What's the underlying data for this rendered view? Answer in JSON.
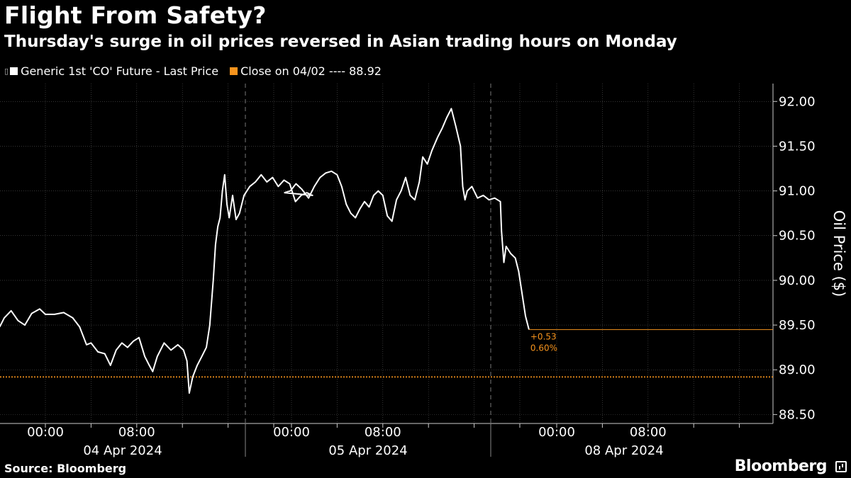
{
  "header": {
    "title": "Flight From Safety?",
    "subtitle": "Thursday's surge in oil prices reversed in Asian trading hours on Monday"
  },
  "legend": {
    "series_label": "Generic 1st 'CO' Future - Last Price",
    "reference_label": "Close on 04/02 ---- 88.92"
  },
  "footer": {
    "source": "Source: Bloomberg",
    "brand": "Bloomberg"
  },
  "colors": {
    "background": "#000000",
    "series": "#ffffff",
    "reference": "#f7941d",
    "grid": "#555555"
  },
  "chart_data": {
    "type": "line",
    "title": "Flight From Safety?",
    "subtitle": "Thursday's surge in oil prices reversed in Asian trading hours on Monday",
    "ylabel": "Oil Price ($)",
    "ylim": [
      88.4,
      92.2
    ],
    "y_ticks": [
      "92.00",
      "91.50",
      "91.00",
      "90.50",
      "90.00",
      "89.50",
      "89.00",
      "88.50"
    ],
    "x_ticks": [
      {
        "day": 0,
        "hour": 0,
        "label": "00:00"
      },
      {
        "day": 0,
        "hour": 8,
        "label": "08:00"
      },
      {
        "day": 1,
        "hour": 0,
        "label": "00:00"
      },
      {
        "day": 1,
        "hour": 8,
        "label": "08:00"
      },
      {
        "day": 2,
        "hour": 0,
        "label": "00:00"
      },
      {
        "day": 2,
        "hour": 8,
        "label": "08:00"
      }
    ],
    "date_labels": [
      "04 Apr 2024",
      "05 Apr 2024",
      "08 Apr 2024"
    ],
    "grid": true,
    "legend_position": "top-left",
    "series": [
      {
        "name": "Generic 1st 'CO' Future - Last Price",
        "points": [
          [
            0,
            -4.0,
            89.48
          ],
          [
            0,
            -3.6,
            89.58
          ],
          [
            0,
            -3.0,
            89.66
          ],
          [
            0,
            -2.4,
            89.55
          ],
          [
            0,
            -1.8,
            89.5
          ],
          [
            0,
            -1.2,
            89.63
          ],
          [
            0,
            -0.5,
            89.68
          ],
          [
            0,
            0.0,
            89.62
          ],
          [
            0,
            0.8,
            89.62
          ],
          [
            0,
            1.6,
            89.64
          ],
          [
            0,
            2.4,
            89.58
          ],
          [
            0,
            3.0,
            89.48
          ],
          [
            0,
            3.6,
            89.28
          ],
          [
            0,
            4.0,
            89.3
          ],
          [
            0,
            4.6,
            89.2
          ],
          [
            0,
            5.2,
            89.18
          ],
          [
            0,
            5.7,
            89.05
          ],
          [
            0,
            6.2,
            89.22
          ],
          [
            0,
            6.7,
            89.3
          ],
          [
            0,
            7.2,
            89.25
          ],
          [
            0,
            7.7,
            89.32
          ],
          [
            0,
            8.2,
            89.36
          ],
          [
            0,
            8.7,
            89.15
          ],
          [
            0,
            9.1,
            89.05
          ],
          [
            0,
            9.4,
            88.98
          ],
          [
            0,
            9.8,
            89.15
          ],
          [
            0,
            10.4,
            89.3
          ],
          [
            0,
            11.0,
            89.22
          ],
          [
            0,
            11.6,
            89.28
          ],
          [
            0,
            12.1,
            89.22
          ],
          [
            0,
            12.4,
            89.1
          ],
          [
            0,
            12.6,
            88.74
          ],
          [
            0,
            12.9,
            88.92
          ],
          [
            0,
            13.3,
            89.05
          ],
          [
            0,
            13.7,
            89.15
          ],
          [
            0,
            14.1,
            89.25
          ],
          [
            0,
            14.4,
            89.5
          ],
          [
            0,
            14.7,
            90.0
          ],
          [
            0,
            14.9,
            90.4
          ],
          [
            0,
            15.1,
            90.6
          ],
          [
            0,
            15.3,
            90.7
          ],
          [
            0,
            15.5,
            91.0
          ],
          [
            0,
            15.7,
            91.18
          ],
          [
            0,
            15.9,
            90.85
          ],
          [
            0,
            16.1,
            90.7
          ],
          [
            0,
            16.4,
            90.95
          ],
          [
            0,
            16.7,
            90.68
          ],
          [
            0,
            17.0,
            90.75
          ],
          [
            0,
            17.4,
            90.95
          ],
          [
            0,
            17.9,
            91.05
          ],
          [
            0,
            18.4,
            91.1
          ],
          [
            0,
            18.9,
            91.18
          ],
          [
            0,
            19.4,
            91.1
          ],
          [
            0,
            19.9,
            91.15
          ],
          [
            0,
            20.4,
            91.05
          ],
          [
            0,
            20.9,
            91.12
          ],
          [
            0,
            21.4,
            91.08
          ],
          [
            0,
            21.9,
            90.88
          ],
          [
            0,
            22.4,
            90.95
          ],
          [
            0,
            22.9,
            90.98
          ],
          [
            0,
            23.4,
            90.95
          ],
          [
            1,
            -0.6,
            90.98
          ],
          [
            1,
            -0.1,
            91.0
          ],
          [
            1,
            0.4,
            91.08
          ],
          [
            1,
            0.9,
            91.02
          ],
          [
            1,
            1.5,
            90.92
          ],
          [
            1,
            2.0,
            91.05
          ],
          [
            1,
            2.5,
            91.15
          ],
          [
            1,
            3.0,
            91.2
          ],
          [
            1,
            3.5,
            91.22
          ],
          [
            1,
            4.0,
            91.18
          ],
          [
            1,
            4.4,
            91.05
          ],
          [
            1,
            4.8,
            90.85
          ],
          [
            1,
            5.2,
            90.75
          ],
          [
            1,
            5.6,
            90.7
          ],
          [
            1,
            6.0,
            90.8
          ],
          [
            1,
            6.4,
            90.88
          ],
          [
            1,
            6.8,
            90.82
          ],
          [
            1,
            7.2,
            90.95
          ],
          [
            1,
            7.6,
            91.0
          ],
          [
            1,
            8.0,
            90.95
          ],
          [
            1,
            8.4,
            90.72
          ],
          [
            1,
            8.8,
            90.66
          ],
          [
            1,
            9.2,
            90.9
          ],
          [
            1,
            9.6,
            91.0
          ],
          [
            1,
            10.0,
            91.15
          ],
          [
            1,
            10.4,
            90.95
          ],
          [
            1,
            10.8,
            90.9
          ],
          [
            1,
            11.2,
            91.1
          ],
          [
            1,
            11.5,
            91.38
          ],
          [
            1,
            11.9,
            91.3
          ],
          [
            1,
            12.3,
            91.45
          ],
          [
            1,
            12.8,
            91.6
          ],
          [
            1,
            13.2,
            91.7
          ],
          [
            1,
            13.6,
            91.82
          ],
          [
            1,
            14.0,
            91.92
          ],
          [
            1,
            14.4,
            91.72
          ],
          [
            1,
            14.8,
            91.5
          ],
          [
            1,
            15.0,
            91.05
          ],
          [
            1,
            15.2,
            90.9
          ],
          [
            1,
            15.4,
            91.0
          ],
          [
            1,
            15.8,
            91.05
          ],
          [
            1,
            16.3,
            90.92
          ],
          [
            1,
            16.8,
            90.95
          ],
          [
            1,
            17.3,
            90.9
          ],
          [
            1,
            17.8,
            90.92
          ],
          [
            1,
            18.3,
            90.88
          ],
          [
            1,
            18.4,
            90.55
          ],
          [
            1,
            18.6,
            90.2
          ],
          [
            1,
            18.8,
            90.38
          ],
          [
            1,
            19.2,
            90.3
          ],
          [
            1,
            19.6,
            90.25
          ],
          [
            1,
            19.9,
            90.1
          ],
          [
            1,
            20.2,
            89.85
          ],
          [
            1,
            20.5,
            89.6
          ],
          [
            1,
            20.8,
            89.45
          ]
        ]
      }
    ],
    "reference_line": {
      "name": "Close on 04/02",
      "value": 88.92
    },
    "last_value_line": 89.45,
    "last_change": {
      "abs": "+0.53",
      "pct": "0.60%"
    }
  }
}
